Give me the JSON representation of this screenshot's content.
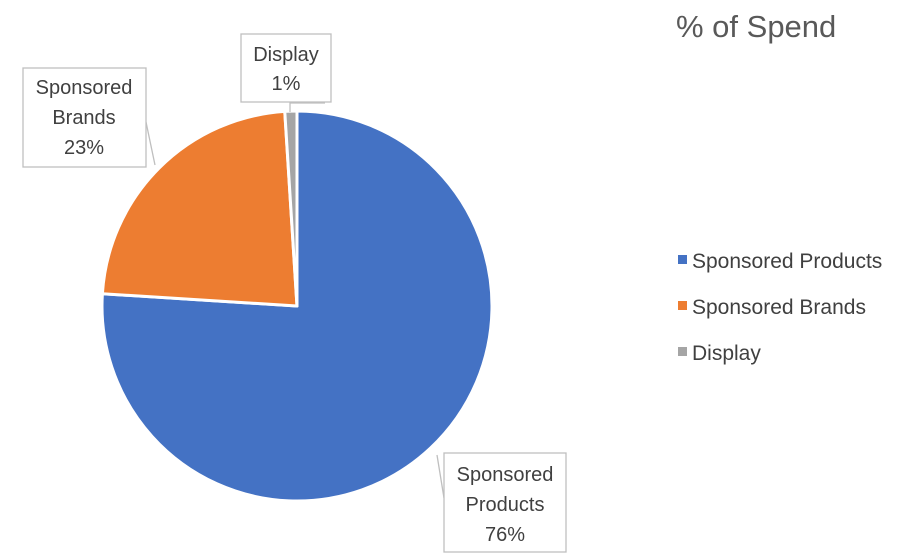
{
  "chart_data": {
    "type": "pie",
    "title": "% of Spend",
    "categories": [
      "Sponsored Products",
      "Sponsored Brands",
      "Display"
    ],
    "values": [
      76,
      23,
      1
    ],
    "data_labels": [
      {
        "lines": [
          "Sponsored",
          "Products",
          "76%"
        ]
      },
      {
        "lines": [
          "Sponsored",
          "Brands",
          "23%"
        ]
      },
      {
        "lines": [
          "Display",
          "1%"
        ]
      }
    ],
    "colors": [
      "#4472c4",
      "#ed7d31",
      "#a5a5a5"
    ],
    "legend_position": "right",
    "start_angle": "12 o'clock",
    "direction": "clockwise"
  }
}
